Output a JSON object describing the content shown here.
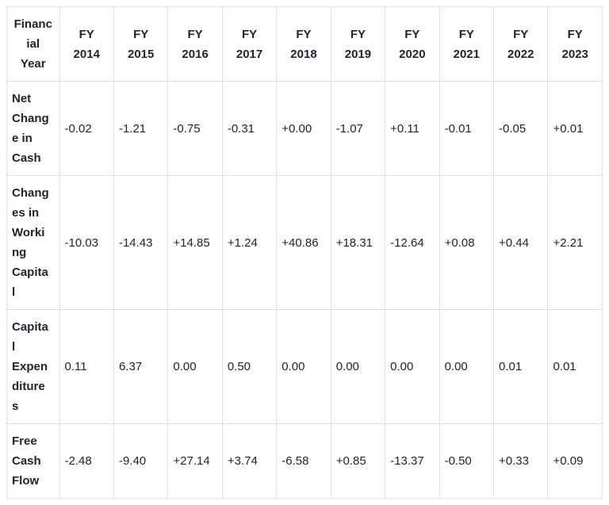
{
  "table": {
    "name": "Financial Year table",
    "header": {
      "corner": {
        "label": "Financial Year",
        "display": "Financ\nial\nYear"
      },
      "columns": [
        {
          "label": "FY 2014",
          "display": "FY\n2014"
        },
        {
          "label": "FY 2015",
          "display": "FY\n2015"
        },
        {
          "label": "FY 2016",
          "display": "FY\n2016"
        },
        {
          "label": "FY 2017",
          "display": "FY\n2017"
        },
        {
          "label": "FY 2018",
          "display": "FY\n2018"
        },
        {
          "label": "FY 2019",
          "display": "FY\n2019"
        },
        {
          "label": "FY 2020",
          "display": "FY\n2020"
        },
        {
          "label": "FY 2021",
          "display": "FY\n2021"
        },
        {
          "label": "FY 2022",
          "display": "FY\n2022"
        },
        {
          "label": "FY 2023",
          "display": "FY\n2023"
        }
      ]
    },
    "rows": [
      {
        "label": "Net Change in Cash",
        "display": "Net\nChang\ne in\nCash",
        "values": [
          "-0.02",
          "-1.21",
          "-0.75",
          "-0.31",
          "+0.00",
          "-1.07",
          "+0.11",
          "-0.01",
          "-0.05",
          "+0.01"
        ]
      },
      {
        "label": "Changes in Working Capital",
        "display": "Chang\nes in\nWorki\nng\nCapita\nl",
        "values": [
          "-10.03",
          "-14.43",
          "+14.85",
          "+1.24",
          "+40.86",
          "+18.31",
          "-12.64",
          "+0.08",
          "+0.44",
          "+2.21"
        ]
      },
      {
        "label": "Capital Expenditures",
        "display": "Capita\nl\nExpen\nditure\ns",
        "values": [
          "0.11",
          "6.37",
          "0.00",
          "0.50",
          "0.00",
          "0.00",
          "0.00",
          "0.00",
          "0.01",
          "0.01"
        ]
      },
      {
        "label": "Free Cash Flow",
        "display": "Free\nCash\nFlow",
        "values": [
          "-2.48",
          "-9.40",
          "+27.14",
          "+3.74",
          "-6.58",
          "+0.85",
          "-13.37",
          "-0.50",
          "+0.33",
          "+0.09"
        ]
      }
    ],
    "colors": {
      "border": "#e2e2e2",
      "text": "#212529",
      "background": "#ffffff"
    }
  },
  "chart_data": {
    "type": "table",
    "row_header": "Financial Year",
    "categories": [
      "FY 2014",
      "FY 2015",
      "FY 2016",
      "FY 2017",
      "FY 2018",
      "FY 2019",
      "FY 2020",
      "FY 2021",
      "FY 2022",
      "FY 2023"
    ],
    "series": [
      {
        "name": "Net Change in Cash",
        "values": [
          -0.02,
          -1.21,
          -0.75,
          -0.31,
          0.0,
          -1.07,
          0.11,
          -0.01,
          -0.05,
          0.01
        ]
      },
      {
        "name": "Changes in Working Capital",
        "values": [
          -10.03,
          -14.43,
          14.85,
          1.24,
          40.86,
          18.31,
          -12.64,
          0.08,
          0.44,
          2.21
        ]
      },
      {
        "name": "Capital Expenditures",
        "values": [
          0.11,
          6.37,
          0.0,
          0.5,
          0.0,
          0.0,
          0.0,
          0.0,
          0.01,
          0.01
        ]
      },
      {
        "name": "Free Cash Flow",
        "values": [
          -2.48,
          -9.4,
          27.14,
          3.74,
          -6.58,
          0.85,
          -13.37,
          -0.5,
          0.33,
          0.09
        ]
      }
    ]
  }
}
